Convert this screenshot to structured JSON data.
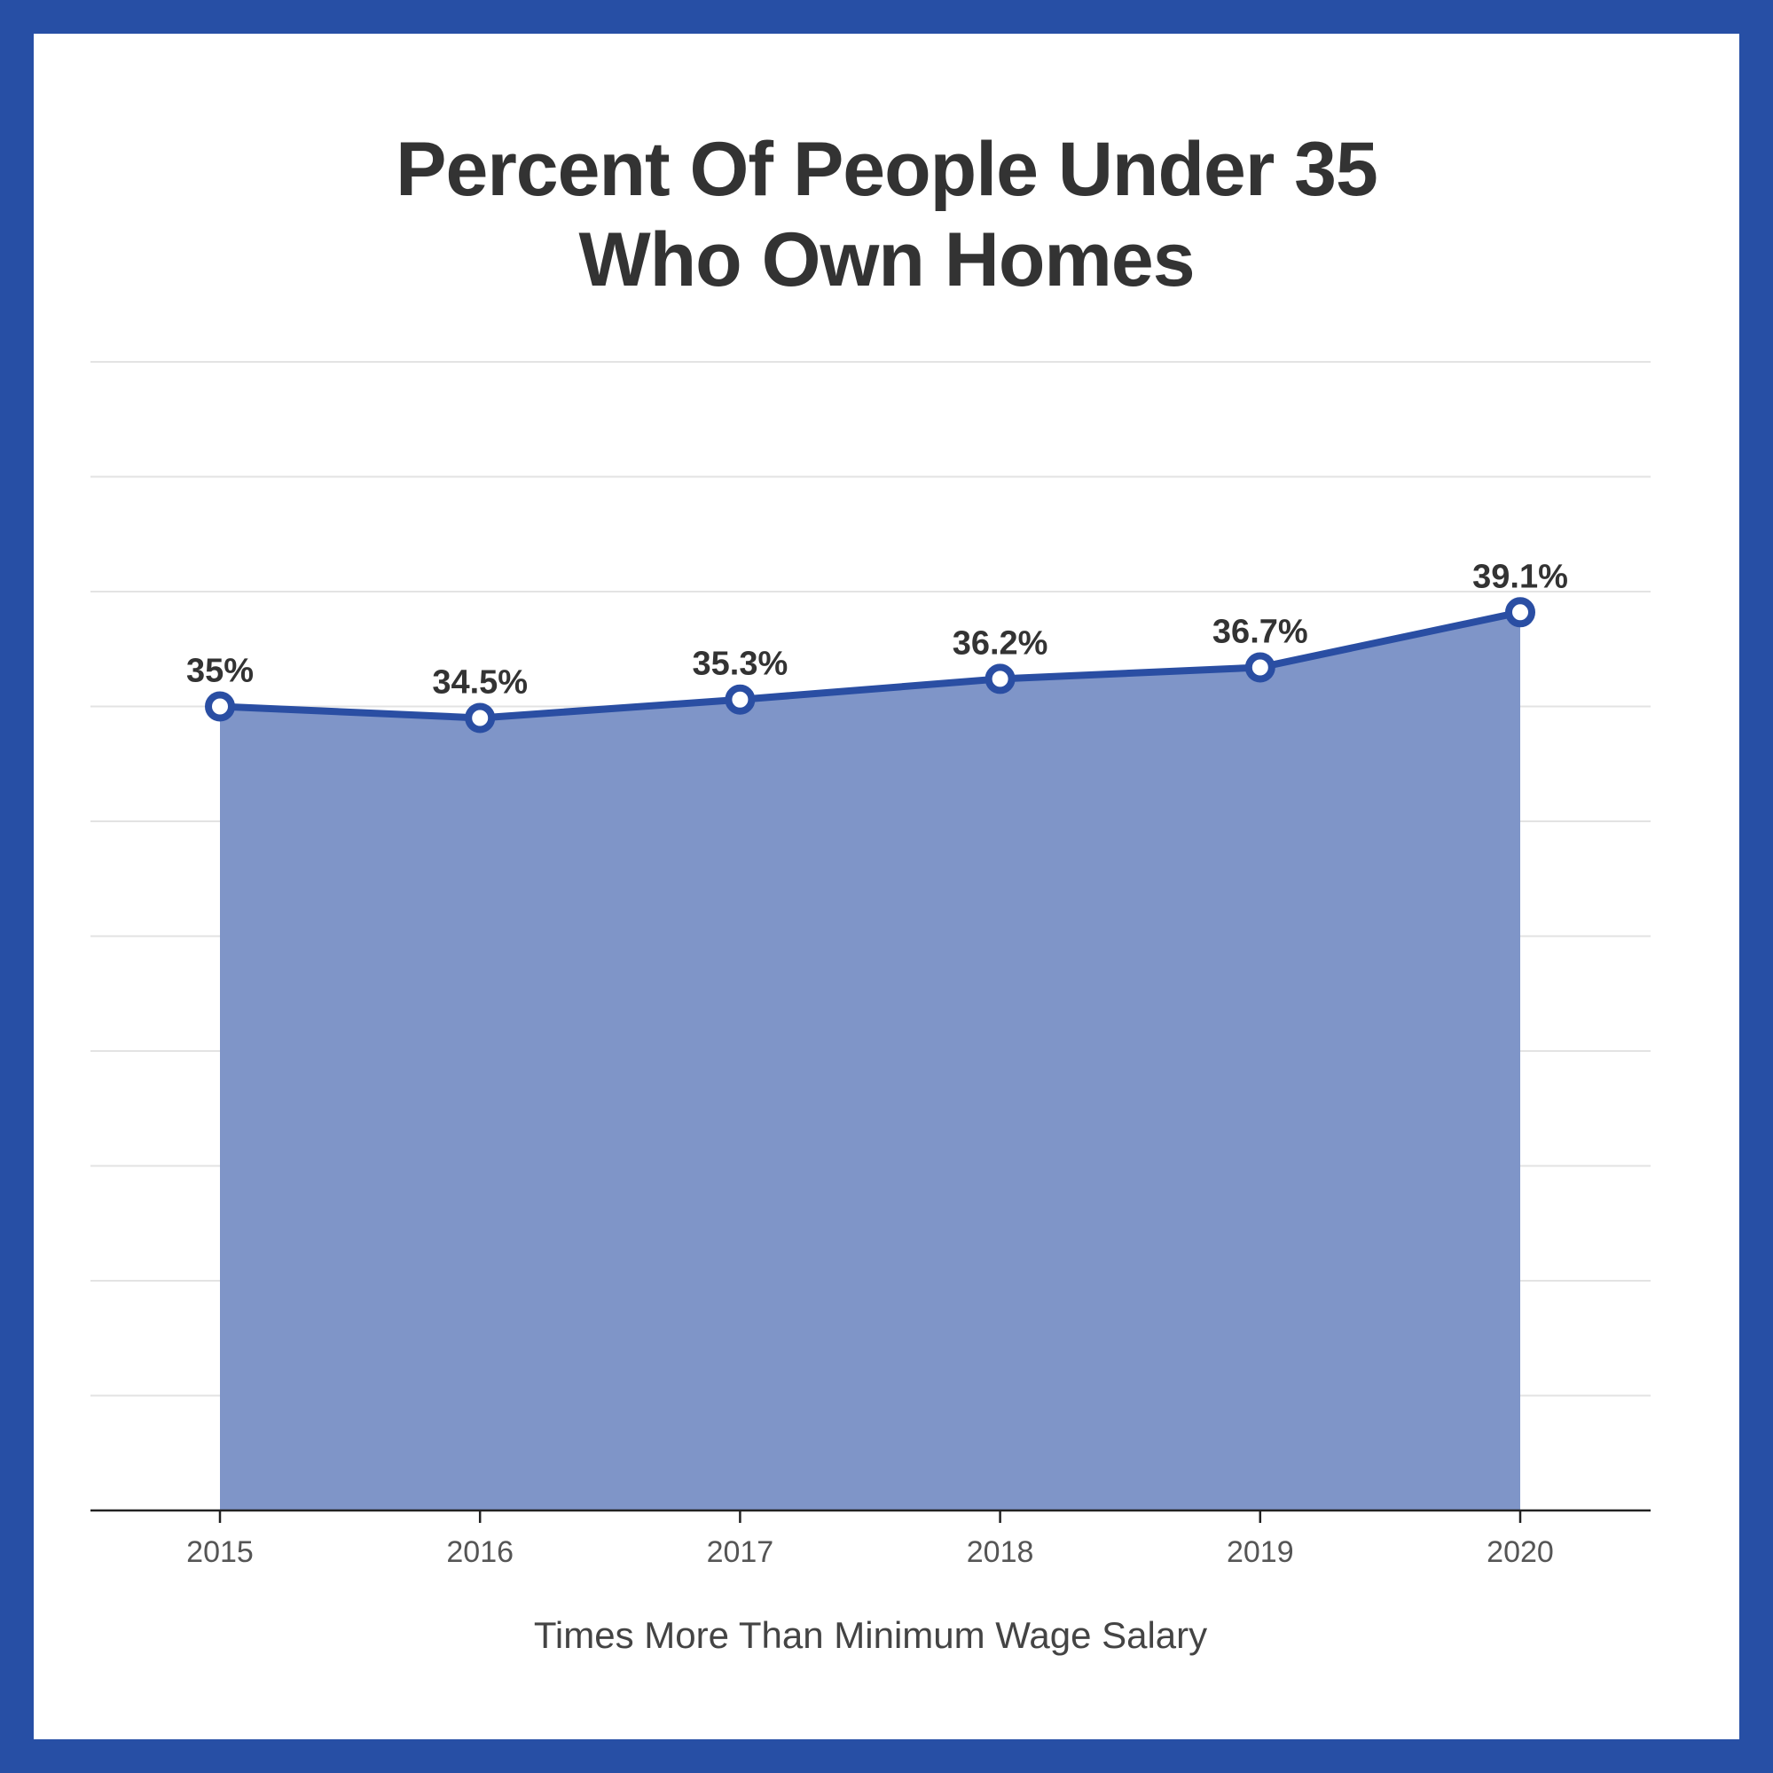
{
  "chart_data": {
    "type": "area",
    "title_lines": [
      "Percent Of People Under 35",
      "Who Own Homes"
    ],
    "xlabel": "Times More Than Minimum Wage Salary",
    "ylabel": "",
    "categories": [
      "2015",
      "2016",
      "2017",
      "2018",
      "2019",
      "2020"
    ],
    "values": [
      35,
      34.5,
      35.3,
      36.2,
      36.7,
      39.1
    ],
    "data_labels": [
      "35%",
      "34.5%",
      "35.3%",
      "36.2%",
      "36.7%",
      "39.1%"
    ],
    "ylim": [
      0,
      50
    ],
    "grid": true,
    "legend": "none",
    "colors": {
      "line": "#2a4ea3",
      "fill": "#7f95c8",
      "border": "#274fa5",
      "marker_fill": "#ffffff"
    }
  }
}
